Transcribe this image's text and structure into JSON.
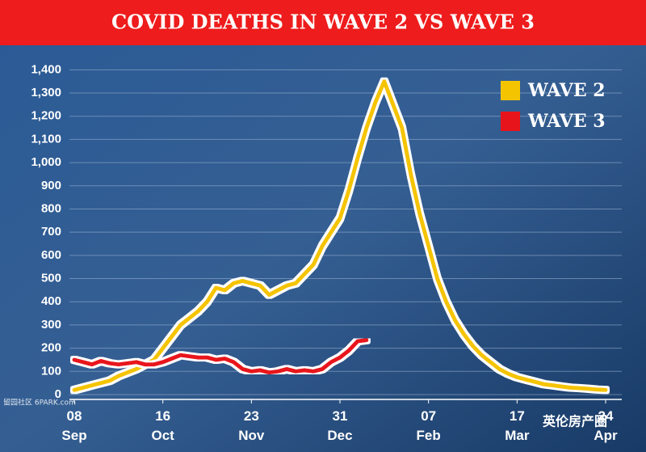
{
  "chart_data": {
    "type": "line",
    "title": "COVID DEATHS IN WAVE 2 VS WAVE 3",
    "categories": [
      "08 Sep",
      null,
      null,
      null,
      null,
      null,
      null,
      null,
      null,
      null,
      "16 Oct",
      null,
      null,
      null,
      null,
      null,
      null,
      null,
      null,
      null,
      "23 Nov",
      null,
      null,
      null,
      null,
      null,
      null,
      null,
      null,
      null,
      "31 Dec",
      null,
      null,
      null,
      null,
      null,
      null,
      null,
      null,
      null,
      "07 Feb",
      null,
      null,
      null,
      null,
      null,
      null,
      null,
      null,
      null,
      "17 Mar",
      null,
      null,
      null,
      null,
      null,
      null,
      null,
      null,
      null,
      "24 Apr"
    ],
    "series": [
      {
        "name": "WAVE 2",
        "color": "#f5c400",
        "values": [
          20,
          30,
          40,
          50,
          60,
          80,
          95,
          110,
          130,
          150,
          200,
          250,
          300,
          330,
          360,
          400,
          460,
          450,
          480,
          490,
          480,
          470,
          430,
          450,
          470,
          480,
          520,
          560,
          640,
          700,
          760,
          880,
          1020,
          1150,
          1260,
          1350,
          1250,
          1150,
          950,
          780,
          640,
          500,
          400,
          320,
          260,
          210,
          170,
          140,
          110,
          90,
          75,
          65,
          55,
          45,
          40,
          35,
          30,
          28,
          25,
          22,
          20
        ]
      },
      {
        "name": "WAVE 3",
        "color": "#e8141c",
        "values": [
          150,
          140,
          130,
          145,
          135,
          130,
          135,
          140,
          130,
          130,
          140,
          155,
          170,
          165,
          160,
          160,
          150,
          155,
          140,
          110,
          100,
          105,
          95,
          100,
          110,
          100,
          105,
          100,
          110,
          140,
          160,
          190,
          230,
          235,
          null,
          null,
          null,
          null,
          null,
          null,
          null,
          null,
          null,
          null,
          null,
          null,
          null,
          null,
          null,
          null,
          null,
          null,
          null,
          null,
          null,
          null,
          null,
          null,
          null,
          null,
          null
        ]
      }
    ],
    "ylim": [
      0,
      1450
    ],
    "yticks": [
      0,
      100,
      200,
      300,
      400,
      500,
      600,
      700,
      800,
      900,
      {
        "value": 1000,
        "label": "1,000"
      },
      {
        "value": 1100,
        "label": "1,100"
      },
      {
        "value": 1200,
        "label": "1,200"
      },
      {
        "value": 1300,
        "label": "1,300"
      },
      {
        "value": 1400,
        "label": "1,400"
      }
    ],
    "grid": true,
    "legend": "top-right",
    "annotations": [
      "留园社区 6PARK.com",
      "英伦房产圈"
    ]
  }
}
